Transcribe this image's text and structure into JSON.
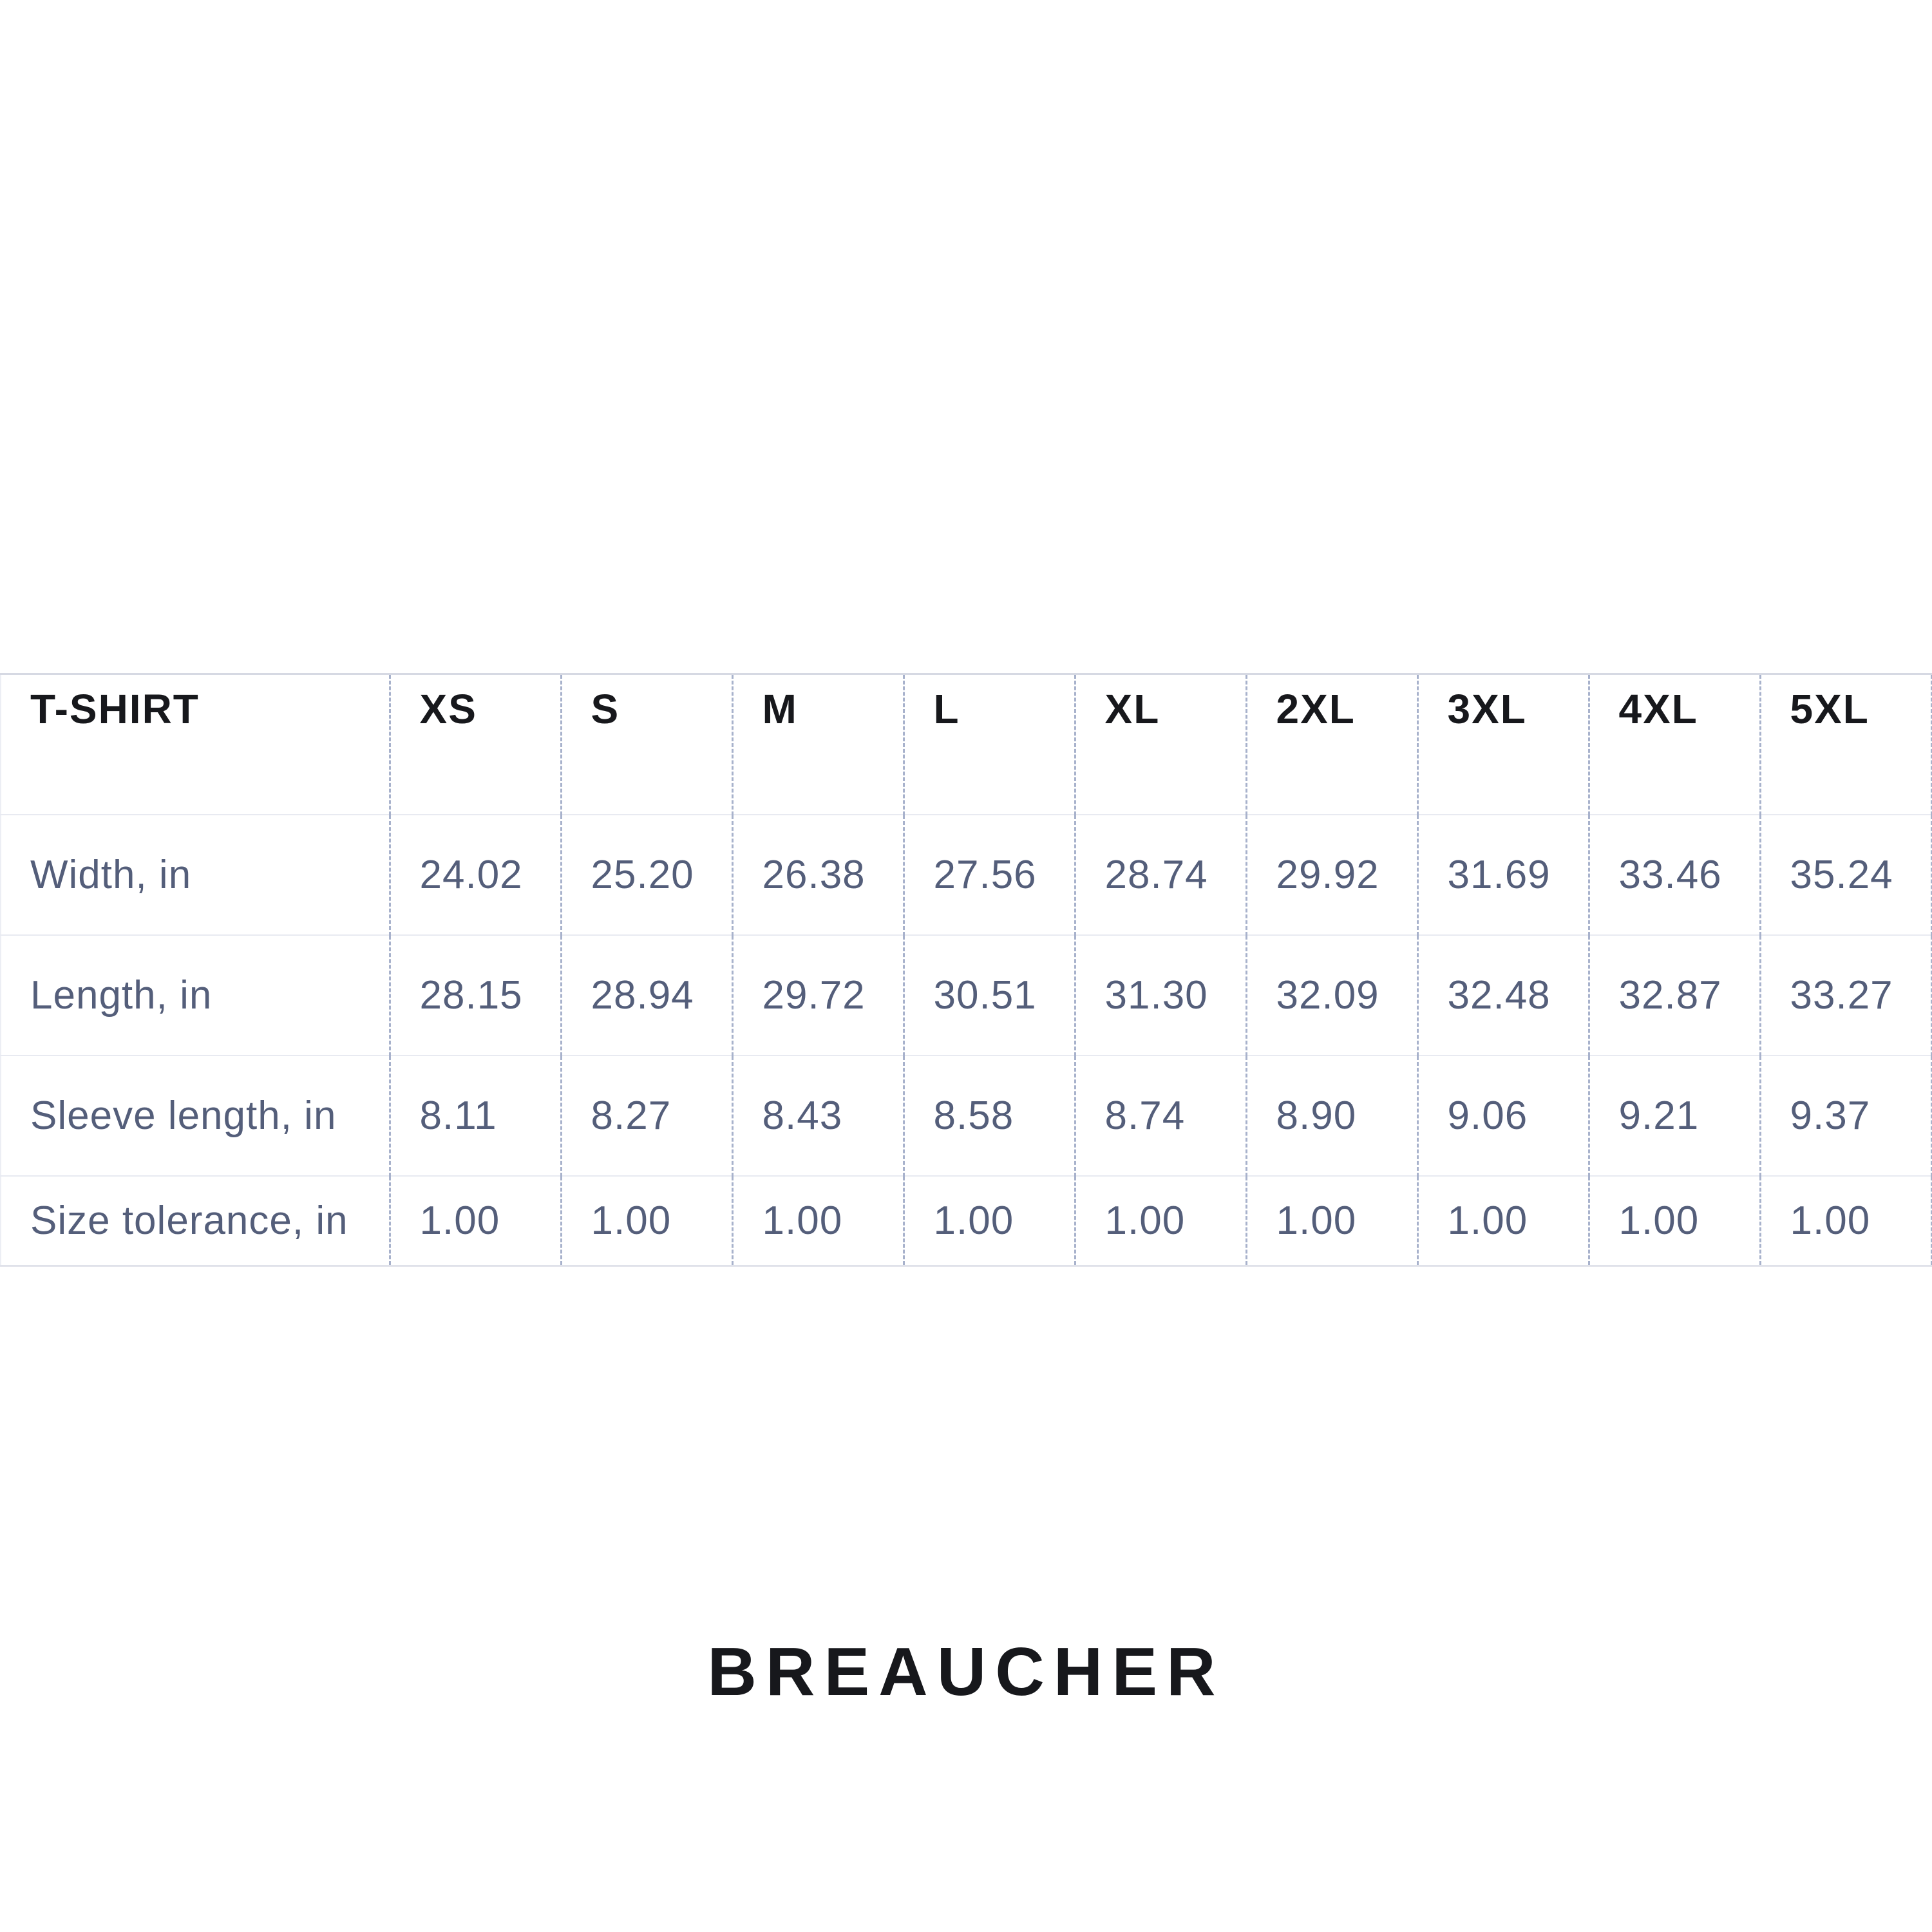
{
  "brand": {
    "label": "BREAUCHER"
  },
  "chart_data": {
    "type": "table",
    "title": "T-SHIRT",
    "unit": "in",
    "columns": [
      "XS",
      "S",
      "M",
      "L",
      "XL",
      "2XL",
      "3XL",
      "4XL",
      "5XL"
    ],
    "rows": [
      {
        "label": "Width, in",
        "values": [
          "24.02",
          "25.20",
          "26.38",
          "27.56",
          "28.74",
          "29.92",
          "31.69",
          "33.46",
          "35.24"
        ]
      },
      {
        "label": "Length, in",
        "values": [
          "28.15",
          "28.94",
          "29.72",
          "30.51",
          "31.30",
          "32.09",
          "32.48",
          "32.87",
          "33.27"
        ]
      },
      {
        "label": "Sleeve length, in",
        "values": [
          "8.11",
          "8.27",
          "8.43",
          "8.58",
          "8.74",
          "8.90",
          "9.06",
          "9.21",
          "9.37"
        ]
      },
      {
        "label": "Size tolerance, in",
        "values": [
          "1.00",
          "1.00",
          "1.00",
          "1.00",
          "1.00",
          "1.00",
          "1.00",
          "1.00",
          "1.00"
        ]
      }
    ],
    "colors": {
      "header_text": "#17181c",
      "body_text": "#545e7a",
      "dashed_divider": "#a8b2cc",
      "row_divider": "#e8eaf1",
      "top_border": "#d6d9e3",
      "brand_text": "#17181c",
      "background": "#ffffff"
    }
  }
}
